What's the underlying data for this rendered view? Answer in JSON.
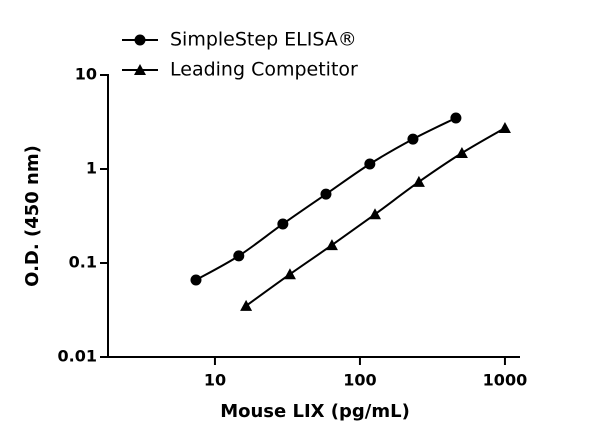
{
  "chart_data": {
    "type": "line",
    "x_label": "Mouse LIX (pg/mL)",
    "y_label": "O.D. (450 nm)",
    "xlog": true,
    "ylog": true,
    "xlim": [
      1.83,
      1270
    ],
    "ylim": [
      0.01,
      10
    ],
    "xticks": [
      10,
      100,
      1000
    ],
    "yticks": [
      0.01,
      0.1,
      1,
      10
    ],
    "legend": "top-left",
    "series": [
      {
        "name": "SimpleStep ELISA®",
        "color": "#000000",
        "marker": "circle",
        "x": [
          7.4,
          14.6,
          29.4,
          58.3,
          117,
          232,
          459
        ],
        "values": [
          0.066,
          0.119,
          0.26,
          0.54,
          1.13,
          2.08,
          3.49
        ]
      },
      {
        "name": "Leading Competitor",
        "color": "#000000",
        "marker": "triangle",
        "x": [
          16.4,
          32.9,
          64.1,
          127,
          255,
          505,
          1000
        ],
        "values": [
          0.035,
          0.076,
          0.155,
          0.33,
          0.73,
          1.48,
          2.73
        ]
      }
    ]
  }
}
